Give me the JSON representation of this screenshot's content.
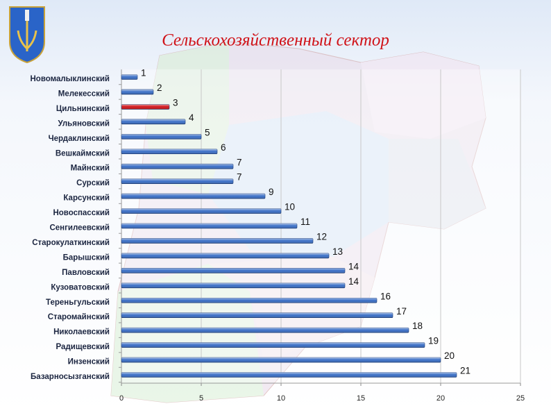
{
  "chart_data": {
    "type": "bar",
    "orientation": "horizontal",
    "title": "Сельскохозяйственный сектор",
    "categories": [
      "Новомалыклинский",
      "Мелекесский",
      "Цильнинский",
      "Ульяновский",
      "Чердаклинский",
      "Вешкаймский",
      "Майнский",
      "Сурский",
      "Карсунский",
      "Новоспасский",
      "Сенгилеевский",
      "Старокулаткинский",
      "Барышский",
      "Павловский",
      "Кузоватовский",
      "Тереньгульский",
      "Старомайнский",
      "Николаевский",
      "Радищевский",
      "Инзенский",
      "Базарносызганский"
    ],
    "values": [
      1,
      2,
      3,
      4,
      5,
      6,
      7,
      7,
      9,
      10,
      11,
      12,
      13,
      14,
      14,
      16,
      17,
      18,
      19,
      20,
      21
    ],
    "colors": [
      "#3b6fc6",
      "#3b6fc6",
      "#d0161b",
      "#3b6fc6",
      "#3b6fc6",
      "#3b6fc6",
      "#3b6fc6",
      "#3b6fc6",
      "#3b6fc6",
      "#3b6fc6",
      "#3b6fc6",
      "#3b6fc6",
      "#3b6fc6",
      "#3b6fc6",
      "#3b6fc6",
      "#3b6fc6",
      "#3b6fc6",
      "#3b6fc6",
      "#3b6fc6",
      "#3b6fc6",
      "#3b6fc6"
    ],
    "xlim": [
      0,
      25
    ],
    "xticks": [
      0,
      5,
      10,
      15,
      20,
      25
    ],
    "grid": true
  }
}
